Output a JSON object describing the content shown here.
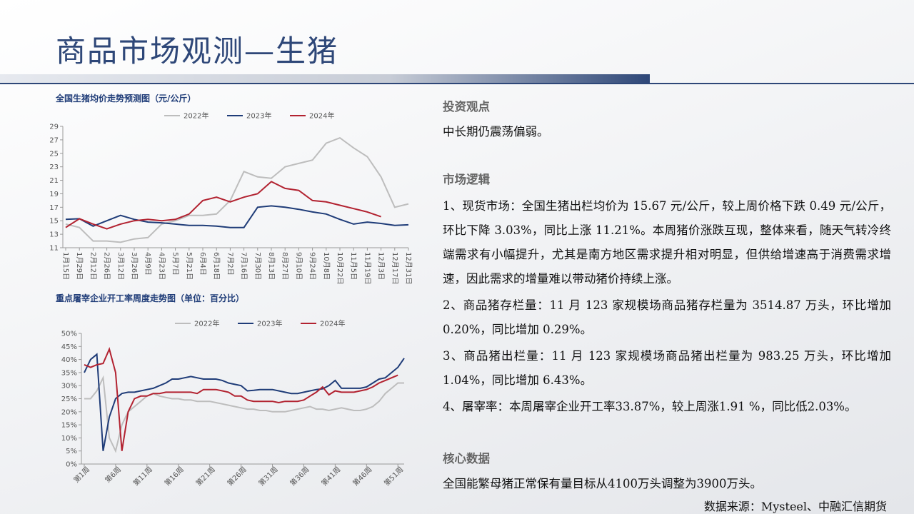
{
  "title": "商品市场观测—生猪",
  "chart_data": [
    {
      "type": "line",
      "title": "全国生猪均价走势预测图（元/公斤）",
      "categories": [
        "1月15日",
        "1月29日",
        "2月12日",
        "2月26日",
        "3月12日",
        "3月26日",
        "4月9日",
        "4月23日",
        "5月7日",
        "5月21日",
        "6月4日",
        "6月18日",
        "7月2日",
        "7月16日",
        "7月30日",
        "8月13日",
        "8月27日",
        "9月10日",
        "9月24日",
        "10月8日",
        "10月22日",
        "11月5日",
        "11月19日",
        "12月3日",
        "12月17日",
        "12月31日"
      ],
      "ylim": [
        11,
        29
      ],
      "yticks": [
        11,
        13,
        15,
        17,
        19,
        21,
        23,
        25,
        27,
        29
      ],
      "series": [
        {
          "name": "2022年",
          "color": "#bdbdbd",
          "values": [
            14.5,
            14,
            12,
            12,
            11.8,
            12.3,
            12.5,
            14.5,
            15,
            15.8,
            15.8,
            16,
            18,
            22.3,
            21.5,
            21.3,
            23,
            23.5,
            24,
            26.5,
            27.3,
            25.8,
            24.5,
            21.5,
            17,
            17.5
          ]
        },
        {
          "name": "2023年",
          "color": "#1f3c78",
          "values": [
            15.2,
            15.3,
            14.2,
            15,
            15.8,
            15.2,
            14.8,
            14.7,
            14.5,
            14.3,
            14.3,
            14.2,
            14,
            14,
            17,
            17.2,
            17,
            16.7,
            16.3,
            16,
            15.2,
            14.5,
            14.8,
            14.6,
            14.3,
            14.4
          ]
        },
        {
          "name": "2024年",
          "color": "#b22230",
          "values": [
            14,
            15.3,
            14.5,
            13.8,
            14.5,
            15,
            15.2,
            15,
            15.2,
            16,
            18,
            18.5,
            17.8,
            18.5,
            19,
            20.8,
            19.8,
            19.5,
            18,
            17.8,
            17.3,
            16.8,
            16.3,
            15.6,
            null,
            null
          ]
        }
      ]
    },
    {
      "type": "line",
      "title": "重点屠宰企业开工率周度走势图（单位：百分比）",
      "categories": [
        "第1周",
        null,
        null,
        null,
        null,
        "第6周",
        null,
        null,
        null,
        null,
        "第11周",
        null,
        null,
        null,
        null,
        "第16周",
        null,
        null,
        null,
        null,
        "第21周",
        null,
        null,
        null,
        null,
        "第26周",
        null,
        null,
        null,
        null,
        "第31周",
        null,
        null,
        null,
        null,
        "第36周",
        null,
        null,
        null,
        null,
        "第41周",
        null,
        null,
        null,
        null,
        "第46周",
        null,
        null,
        null,
        null,
        "第51周",
        null
      ],
      "ylim": [
        0,
        50
      ],
      "yticks": [
        {
          "value": 0,
          "label": "0%"
        },
        {
          "value": 5,
          "label": "5%"
        },
        {
          "value": 10,
          "label": "10%"
        },
        {
          "value": 15,
          "label": "15%"
        },
        {
          "value": 20,
          "label": "20%"
        },
        {
          "value": 25,
          "label": "25%"
        },
        {
          "value": 30,
          "label": "30%"
        },
        {
          "value": 35,
          "label": "35%"
        },
        {
          "value": 40,
          "label": "40%"
        },
        {
          "value": 45,
          "label": "45%"
        },
        {
          "value": 50,
          "label": "50%"
        }
      ],
      "series": [
        {
          "name": "2022年",
          "color": "#bdbdbd",
          "values": [
            25,
            25,
            28,
            33,
            10,
            5,
            15,
            20,
            22,
            24,
            26,
            27,
            26,
            25.5,
            25,
            25,
            24.5,
            24.5,
            24,
            24,
            24,
            23.5,
            23,
            22.5,
            22,
            21.5,
            21,
            21,
            20.5,
            20.5,
            20,
            20,
            20,
            20.5,
            21,
            21.5,
            22,
            21,
            21,
            20.5,
            21,
            21.5,
            21,
            20.5,
            20.5,
            21,
            22,
            24,
            27,
            29,
            31,
            31
          ]
        },
        {
          "name": "2023年",
          "color": "#1f3c78",
          "values": [
            35,
            40,
            42,
            5,
            18,
            25,
            27,
            27.5,
            27.5,
            28,
            28.5,
            29,
            30,
            31,
            32.5,
            32.5,
            33,
            33.5,
            33,
            32.5,
            32.5,
            32.5,
            32,
            31,
            30.5,
            30,
            28,
            28.2,
            28.5,
            28.5,
            28.5,
            28,
            27.5,
            27,
            27,
            27.5,
            28,
            28.5,
            28.8,
            30,
            32,
            29,
            29,
            29,
            29,
            29.5,
            31,
            32.5,
            33,
            35,
            37,
            40.5
          ]
        },
        {
          "name": "2024年",
          "color": "#b22230",
          "values": [
            38,
            37,
            38,
            38.5,
            44,
            35,
            5,
            20,
            25,
            26,
            26,
            27,
            27,
            27.5,
            27.5,
            27.5,
            27.5,
            27.5,
            27,
            28.5,
            28.5,
            28.5,
            28,
            27.5,
            26,
            26,
            24.5,
            24,
            24,
            24,
            24,
            23.5,
            24,
            24,
            24,
            24.5,
            26,
            27.5,
            29.5,
            26.5,
            28,
            27.5,
            27.5,
            27.5,
            28,
            28.5,
            29.5,
            31,
            32,
            33,
            34,
            null
          ]
        }
      ]
    }
  ],
  "panel": {
    "h1": "投资观点",
    "p1": "中长期仍震荡偏弱。",
    "h2": "市场逻辑",
    "items": [
      "1、现货市场：全国生猪出栏均价为 15.67 元/公斤，较上周价格下跌 0.49 元/公斤，环比下降 3.03%，同比上涨 11.21%。本周猪价涨跌互现，整体来看，随天气转冷终端需求有小幅提升，尤其是南方地区需求提升相对明显，但供给增速高于消费需求增速，因此需求的增量难以带动猪价持续上涨。",
      "2、商品猪存栏量：11 月 123 家规模场商品猪存栏量为 3514.87 万头，环比增加 0.20%，同比增加 0.29%。",
      "3、商品猪出栏量：11 月 123 家规模场商品猪出栏量为 983.25 万头，环比增加 1.04%，同比增加 6.43%。",
      "4、屠宰率：本周屠宰企业开工率33.87%，较上周涨1.91 %，同比低2.03%。"
    ],
    "h3": "核心数据",
    "p3": "全国能繁母猪正常保有量目标从4100万头调整为3900万头。"
  },
  "source": "数据来源：Mysteel、中融汇信期货"
}
